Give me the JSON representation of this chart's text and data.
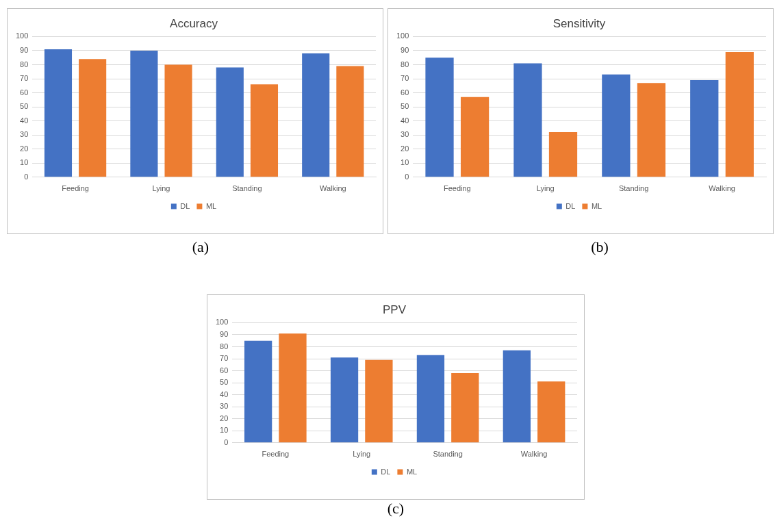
{
  "chart_data": [
    {
      "type": "bar",
      "title": "Accuracy",
      "categories": [
        "Feeding",
        "Lying",
        "Standing",
        "Walking"
      ],
      "series": [
        {
          "name": "DL",
          "color": "#4472c4",
          "values": [
            91,
            90,
            78,
            88
          ]
        },
        {
          "name": "ML",
          "color": "#ed7d31",
          "values": [
            84,
            80,
            66,
            79
          ]
        }
      ],
      "ylim": [
        0,
        100
      ],
      "yticks": [
        0,
        10,
        20,
        30,
        40,
        50,
        60,
        70,
        80,
        90,
        100
      ],
      "grid": "y",
      "legend": "bottom",
      "annotations": [
        "(a)"
      ]
    },
    {
      "type": "bar",
      "title": "Sensitivity",
      "categories": [
        "Feeding",
        "Lying",
        "Standing",
        "Walking"
      ],
      "series": [
        {
          "name": "DL",
          "color": "#4472c4",
          "values": [
            85,
            81,
            73,
            69
          ]
        },
        {
          "name": "ML",
          "color": "#ed7d31",
          "values": [
            57,
            32,
            67,
            89
          ]
        }
      ],
      "ylim": [
        0,
        100
      ],
      "yticks": [
        0,
        10,
        20,
        30,
        40,
        50,
        60,
        70,
        80,
        90,
        100
      ],
      "grid": "y",
      "legend": "bottom",
      "annotations": [
        "(b)"
      ]
    },
    {
      "type": "bar",
      "title": "PPV",
      "categories": [
        "Feeding",
        "Lying",
        "Standing",
        "Walking"
      ],
      "series": [
        {
          "name": "DL",
          "color": "#4472c4",
          "values": [
            85,
            71,
            73,
            77
          ]
        },
        {
          "name": "ML",
          "color": "#ed7d31",
          "values": [
            91,
            69,
            58,
            51
          ]
        }
      ],
      "ylim": [
        0,
        100
      ],
      "yticks": [
        0,
        10,
        20,
        30,
        40,
        50,
        60,
        70,
        80,
        90,
        100
      ],
      "grid": "y",
      "legend": "bottom",
      "annotations": [
        "(c)"
      ]
    }
  ]
}
